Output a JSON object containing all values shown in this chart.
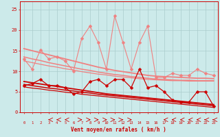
{
  "x": [
    0,
    1,
    2,
    3,
    4,
    5,
    6,
    7,
    8,
    9,
    10,
    11,
    12,
    13,
    14,
    15,
    16,
    17,
    18,
    19,
    20,
    21,
    22,
    23
  ],
  "series": [
    {
      "name": "rafales_light",
      "color": "#f08080",
      "lw": 0.8,
      "marker": "D",
      "ms": 2.5,
      "y": [
        13.0,
        10.5,
        15.2,
        13.0,
        13.5,
        12.5,
        10.0,
        18.0,
        21.0,
        17.0,
        10.5,
        23.5,
        17.0,
        10.5,
        17.0,
        21.0,
        8.5,
        8.5,
        9.5,
        9.0,
        9.0,
        10.5,
        9.5,
        9.0
      ]
    },
    {
      "name": "trend_light1",
      "color": "#f08080",
      "lw": 1.3,
      "marker": null,
      "ms": 0,
      "y": [
        15.5,
        15.0,
        14.5,
        14.0,
        13.5,
        13.0,
        12.5,
        12.0,
        11.5,
        11.0,
        10.6,
        10.2,
        9.9,
        9.6,
        9.3,
        9.0,
        8.8,
        8.7,
        8.6,
        8.5,
        8.4,
        8.3,
        8.3,
        8.2
      ]
    },
    {
      "name": "trend_light2",
      "color": "#f08080",
      "lw": 1.1,
      "marker": null,
      "ms": 0,
      "y": [
        13.5,
        13.0,
        12.6,
        12.1,
        11.7,
        11.3,
        10.9,
        10.5,
        10.2,
        9.8,
        9.5,
        9.2,
        9.0,
        8.7,
        8.5,
        8.3,
        8.1,
        8.0,
        7.9,
        7.8,
        7.8,
        7.7,
        7.7,
        7.7
      ]
    },
    {
      "name": "trend_light3",
      "color": "#f08080",
      "lw": 0.9,
      "marker": null,
      "ms": 0,
      "y": [
        12.5,
        12.1,
        11.7,
        11.3,
        11.0,
        10.6,
        10.3,
        9.9,
        9.6,
        9.3,
        9.1,
        8.8,
        8.6,
        8.4,
        8.2,
        8.0,
        7.9,
        7.8,
        7.7,
        7.7,
        7.6,
        7.6,
        7.6,
        7.6
      ]
    },
    {
      "name": "moyen_dark",
      "color": "#cc0000",
      "lw": 0.9,
      "marker": "D",
      "ms": 2.5,
      "y": [
        6.5,
        7.0,
        8.0,
        6.5,
        6.5,
        6.0,
        4.5,
        5.0,
        7.5,
        8.0,
        6.5,
        8.0,
        8.0,
        6.0,
        10.5,
        6.0,
        6.5,
        5.0,
        3.0,
        2.5,
        2.5,
        5.0,
        5.0,
        1.5
      ]
    },
    {
      "name": "trend_dark1",
      "color": "#cc0000",
      "lw": 1.3,
      "marker": null,
      "ms": 0,
      "y": [
        7.5,
        7.2,
        6.9,
        6.6,
        6.3,
        6.0,
        5.7,
        5.4,
        5.1,
        4.8,
        4.5,
        4.3,
        4.1,
        3.9,
        3.7,
        3.5,
        3.3,
        3.1,
        2.9,
        2.7,
        2.5,
        2.3,
        2.1,
        1.9
      ]
    },
    {
      "name": "trend_dark2",
      "color": "#cc0000",
      "lw": 1.1,
      "marker": null,
      "ms": 0,
      "y": [
        6.8,
        6.5,
        6.2,
        5.9,
        5.7,
        5.4,
        5.2,
        4.9,
        4.7,
        4.4,
        4.2,
        4.0,
        3.8,
        3.6,
        3.4,
        3.2,
        3.0,
        2.8,
        2.6,
        2.4,
        2.2,
        2.0,
        1.8,
        1.6
      ]
    },
    {
      "name": "trend_dark3",
      "color": "#cc0000",
      "lw": 0.9,
      "marker": null,
      "ms": 0,
      "y": [
        6.2,
        5.9,
        5.7,
        5.4,
        5.2,
        4.9,
        4.7,
        4.4,
        4.2,
        4.0,
        3.8,
        3.6,
        3.4,
        3.2,
        3.0,
        2.8,
        2.6,
        2.4,
        2.2,
        2.0,
        1.8,
        1.6,
        1.4,
        1.2
      ]
    }
  ],
  "wind_arrows": {
    "angles_deg": [
      90,
      90,
      90,
      110,
      115,
      125,
      90,
      60,
      45,
      60,
      50,
      70,
      80,
      45,
      90,
      90,
      90,
      135,
      145,
      135,
      135,
      145,
      150,
      150
    ]
  },
  "xlabel": "Vent moyen/en rafales ( km/h )",
  "xlim": [
    -0.5,
    23.5
  ],
  "ylim": [
    0,
    27
  ],
  "yticks": [
    0,
    5,
    10,
    15,
    20,
    25
  ],
  "xticks": [
    0,
    1,
    2,
    3,
    4,
    5,
    6,
    7,
    8,
    9,
    10,
    11,
    12,
    13,
    14,
    15,
    16,
    17,
    18,
    19,
    20,
    21,
    22,
    23
  ],
  "bg_color": "#cceaea",
  "grid_color": "#aacccc",
  "xlabel_color": "#cc0000",
  "tick_color": "#cc0000",
  "spine_color": "#cc0000"
}
